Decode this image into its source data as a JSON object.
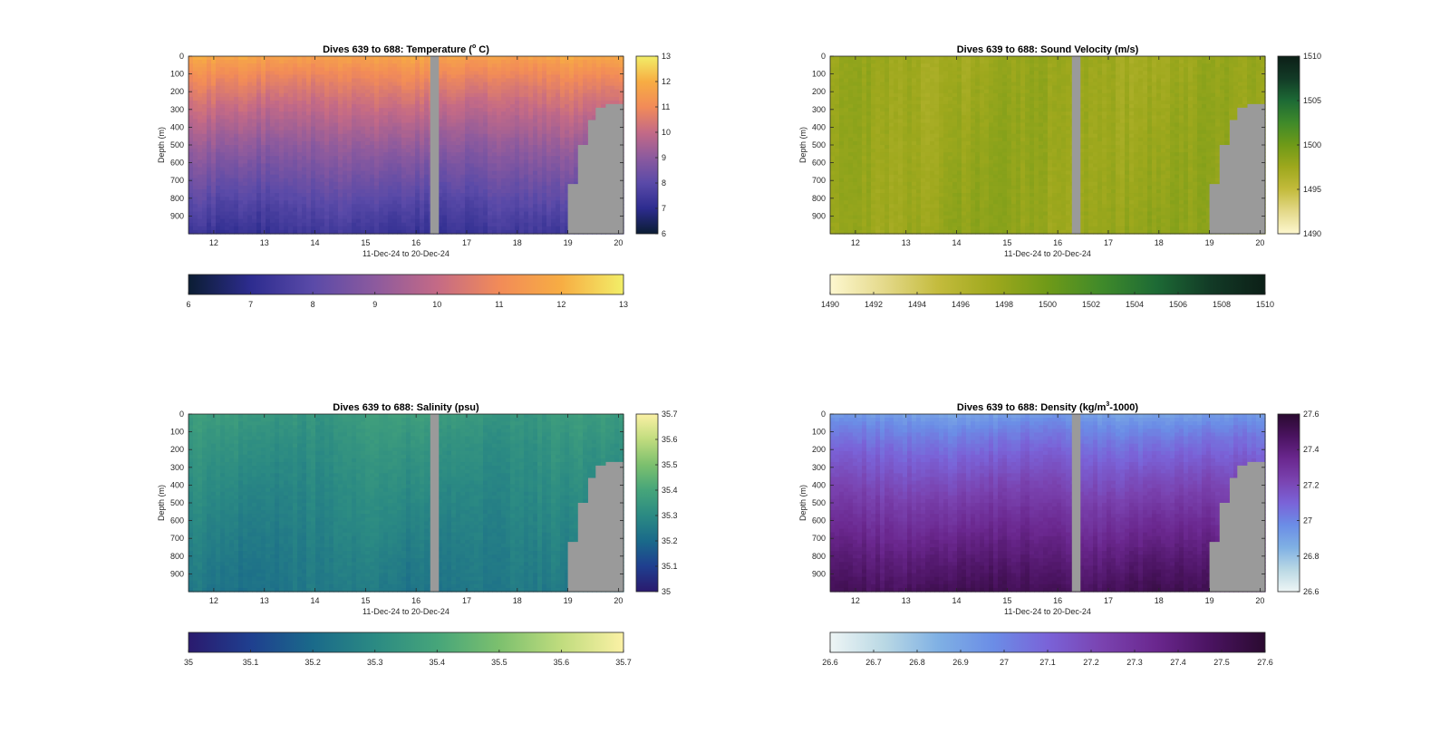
{
  "chart_data": [
    {
      "type": "heatmap",
      "title_main": "Dives 639 to 688: Temperature (",
      "title_sup": "o",
      "title_tail": " C)",
      "xlabel": "11-Dec-24 to 20-Dec-24",
      "ylabel": "Depth (m)",
      "x_ticks": [
        "12",
        "13",
        "14",
        "15",
        "16",
        "17",
        "18",
        "19",
        "20"
      ],
      "x_range": [
        11.5,
        20.1
      ],
      "y_ticks": [
        "0",
        "100",
        "200",
        "300",
        "400",
        "500",
        "600",
        "700",
        "800",
        "900"
      ],
      "y_range": [
        0,
        1000
      ],
      "color_range": [
        6,
        13
      ],
      "vertical_colorbar_ticks": [
        "6",
        "7",
        "8",
        "9",
        "10",
        "11",
        "12",
        "13"
      ],
      "horizontal_colorbar_ticks": [
        "6",
        "7",
        "8",
        "9",
        "10",
        "11",
        "12",
        "13"
      ],
      "colormap": [
        "#0b1d33",
        "#2d2c8f",
        "#5a4aa8",
        "#8c5a9e",
        "#c46a86",
        "#f28b58",
        "#f7ad43",
        "#f2ee68"
      ],
      "surface_value": 11.8,
      "bottom_value": 7.3,
      "gap_day_range": [
        16.28,
        16.45
      ],
      "bottom_mask_depths": [
        {
          "day": 19.0,
          "depth": 720
        },
        {
          "day": 19.2,
          "depth": 500
        },
        {
          "day": 19.4,
          "depth": 360
        },
        {
          "day": 19.55,
          "depth": 290
        },
        {
          "day": 19.75,
          "depth": 270
        },
        {
          "day": 20.1,
          "depth": 260
        }
      ],
      "nan_color": "#9a9a9a"
    },
    {
      "type": "heatmap",
      "title_main": "Dives 639 to 688: Sound Velocity (m/s)",
      "title_sup": "",
      "title_tail": "",
      "xlabel": "11-Dec-24 to 20-Dec-24",
      "ylabel": "Depth (m)",
      "x_ticks": [
        "12",
        "13",
        "14",
        "15",
        "16",
        "17",
        "18",
        "19",
        "20"
      ],
      "x_range": [
        11.5,
        20.1
      ],
      "y_ticks": [
        "0",
        "100",
        "200",
        "300",
        "400",
        "500",
        "600",
        "700",
        "800",
        "900"
      ],
      "y_range": [
        0,
        1000
      ],
      "color_range": [
        1490,
        1510
      ],
      "vertical_colorbar_ticks": [
        "1490",
        "1495",
        "1500",
        "1505",
        "1510"
      ],
      "horizontal_colorbar_ticks": [
        "1490",
        "1492",
        "1494",
        "1496",
        "1498",
        "1500",
        "1502",
        "1504",
        "1506",
        "1508",
        "1510"
      ],
      "colormap": [
        "#fdf7cf",
        "#e4d98a",
        "#c3bb3c",
        "#9ea81d",
        "#6f9a18",
        "#3f8a2a",
        "#1d6a35",
        "#123a26",
        "#0c1f17"
      ],
      "surface_value": 1497.5,
      "bottom_value": 1498.0,
      "gap_day_range": [
        16.28,
        16.45
      ],
      "bottom_mask_depths": [
        {
          "day": 19.0,
          "depth": 720
        },
        {
          "day": 19.2,
          "depth": 500
        },
        {
          "day": 19.4,
          "depth": 360
        },
        {
          "day": 19.55,
          "depth": 290
        },
        {
          "day": 19.75,
          "depth": 270
        },
        {
          "day": 20.1,
          "depth": 260
        }
      ],
      "nan_color": "#9a9a9a"
    },
    {
      "type": "heatmap",
      "title_main": "Dives 639 to 688: Salinity (psu)",
      "title_sup": "",
      "title_tail": "",
      "xlabel": "11-Dec-24 to 20-Dec-24",
      "ylabel": "Depth (m)",
      "x_ticks": [
        "12",
        "13",
        "14",
        "15",
        "16",
        "17",
        "18",
        "19",
        "20"
      ],
      "x_range": [
        11.5,
        20.1
      ],
      "y_ticks": [
        "0",
        "100",
        "200",
        "300",
        "400",
        "500",
        "600",
        "700",
        "800",
        "900"
      ],
      "y_range": [
        0,
        1000
      ],
      "color_range": [
        35,
        35.7
      ],
      "vertical_colorbar_ticks": [
        "35",
        "35.1",
        "35.2",
        "35.3",
        "35.4",
        "35.5",
        "35.6",
        "35.7"
      ],
      "horizontal_colorbar_ticks": [
        "35",
        "35.1",
        "35.2",
        "35.3",
        "35.4",
        "35.5",
        "35.6",
        "35.7"
      ],
      "colormap": [
        "#2a1a6e",
        "#1f3f8f",
        "#1a6a8a",
        "#2b8a83",
        "#46a57a",
        "#7cc06e",
        "#c0dc7e",
        "#fbf1a5"
      ],
      "surface_value": 35.36,
      "bottom_value": 35.24,
      "gap_day_range": [
        16.28,
        16.45
      ],
      "bottom_mask_depths": [
        {
          "day": 19.0,
          "depth": 720
        },
        {
          "day": 19.2,
          "depth": 500
        },
        {
          "day": 19.4,
          "depth": 360
        },
        {
          "day": 19.55,
          "depth": 290
        },
        {
          "day": 19.75,
          "depth": 270
        },
        {
          "day": 20.1,
          "depth": 260
        }
      ],
      "nan_color": "#9a9a9a"
    },
    {
      "type": "heatmap",
      "title_main": "Dives 639 to 688: Density (kg/m",
      "title_sup": "3",
      "title_tail": "-1000)",
      "xlabel": "11-Dec-24 to 20-Dec-24",
      "ylabel": "Depth (m)",
      "x_ticks": [
        "12",
        "13",
        "14",
        "15",
        "16",
        "17",
        "18",
        "19",
        "20"
      ],
      "x_range": [
        11.5,
        20.1
      ],
      "y_ticks": [
        "0",
        "100",
        "200",
        "300",
        "400",
        "500",
        "600",
        "700",
        "800",
        "900"
      ],
      "y_range": [
        0,
        1000
      ],
      "color_range": [
        26.6,
        27.6
      ],
      "vertical_colorbar_ticks": [
        "26.6",
        "26.8",
        "27",
        "27.2",
        "27.4",
        "27.6"
      ],
      "horizontal_colorbar_ticks": [
        "26.6",
        "26.7",
        "26.8",
        "26.9",
        "27",
        "27.1",
        "27.2",
        "27.3",
        "27.4",
        "27.5",
        "27.6"
      ],
      "colormap": [
        "#eef5f5",
        "#b9d8e4",
        "#7fb0e4",
        "#6b8de6",
        "#7a63d8",
        "#7a43b0",
        "#6a278e",
        "#4a1360",
        "#2a0a30"
      ],
      "surface_value": 26.9,
      "bottom_value": 27.5,
      "gap_day_range": [
        16.28,
        16.45
      ],
      "bottom_mask_depths": [
        {
          "day": 19.0,
          "depth": 720
        },
        {
          "day": 19.2,
          "depth": 500
        },
        {
          "day": 19.4,
          "depth": 360
        },
        {
          "day": 19.55,
          "depth": 290
        },
        {
          "day": 19.75,
          "depth": 270
        },
        {
          "day": 20.1,
          "depth": 260
        }
      ],
      "nan_color": "#9a9a9a"
    }
  ]
}
